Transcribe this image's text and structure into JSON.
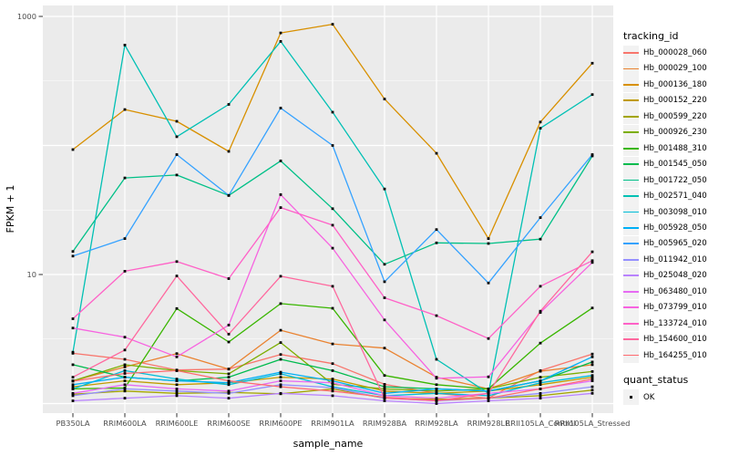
{
  "figure": {
    "panel_bg": "#EBEBEB",
    "gridline_color": "#FFFFFF",
    "point_color": "#000000",
    "tick_color": "#333333",
    "axis_text_color": "#4D4D4D"
  },
  "legend": {
    "tracking_title": "tracking_id",
    "quant_title": "quant_status",
    "quant_items": [
      "OK"
    ]
  },
  "chart_data": {
    "type": "line",
    "title": "",
    "xlabel": "sample_name",
    "ylabel": "FPKM + 1",
    "y_scale": "log10",
    "ylim": [
      1,
      1000
    ],
    "y_ticks": [
      {
        "label": "1000",
        "value": 1000
      },
      {
        "label": "10",
        "value": 10
      }
    ],
    "grid": "on",
    "legend_position": "right",
    "categories": [
      "PB350LA",
      "RRIM600LA",
      "RRIM600LE",
      "RRIM600SE",
      "RRIM600PE",
      "RRIM901LA",
      "RRIM928BA",
      "RRIM928LA",
      "RRIM928LE",
      "RRII105LA_Control",
      "RRII105LA_Stressed"
    ],
    "series": [
      {
        "name": "Hb_000028_060",
        "color": "#F8766D",
        "values": [
          2.45,
          2.2,
          1.82,
          1.85,
          2.4,
          2.04,
          1.41,
          1.2,
          1.1,
          1.8,
          2.42
        ]
      },
      {
        "name": "Hb_000029_100",
        "color": "#EA8331",
        "values": [
          1.5,
          1.92,
          2.44,
          1.85,
          3.7,
          2.9,
          2.69,
          1.6,
          1.3,
          1.78,
          2.0
        ]
      },
      {
        "name": "Hb_000136_180",
        "color": "#D89000",
        "values": [
          93,
          190,
          154,
          90,
          745,
          870,
          229,
          87,
          19,
          152,
          434
        ]
      },
      {
        "name": "Hb_000152_220",
        "color": "#C09B00",
        "values": [
          1.35,
          1.5,
          1.4,
          1.45,
          1.6,
          1.55,
          1.25,
          1.2,
          1.25,
          1.4,
          1.6
        ]
      },
      {
        "name": "Hb_000599_220",
        "color": "#A3A500",
        "values": [
          1.18,
          1.25,
          1.2,
          1.22,
          1.19,
          1.3,
          1.1,
          1.08,
          1.1,
          1.15,
          1.27
        ]
      },
      {
        "name": "Hb_000926_230",
        "color": "#7CAE00",
        "values": [
          1.5,
          2.0,
          1.8,
          1.7,
          2.97,
          1.41,
          1.3,
          1.25,
          1.3,
          1.6,
          1.77
        ]
      },
      {
        "name": "Hb_001488_310",
        "color": "#39B600",
        "values": [
          1.3,
          1.32,
          5.45,
          3.0,
          5.95,
          5.48,
          1.65,
          1.4,
          1.3,
          2.94,
          5.5
        ]
      },
      {
        "name": "Hb_001545_050",
        "color": "#00BB4E",
        "values": [
          2.0,
          1.6,
          1.5,
          1.6,
          2.2,
          1.8,
          1.35,
          1.3,
          1.25,
          1.5,
          2.1
        ]
      },
      {
        "name": "Hb_001722_050",
        "color": "#00C087",
        "values": [
          15.1,
          56,
          59,
          41,
          76,
          32.4,
          12,
          17.6,
          17.4,
          18.8,
          83
        ]
      },
      {
        "name": "Hb_002571_040",
        "color": "#00C0B4",
        "values": [
          2.5,
          600,
          117,
          208,
          640,
          181,
          46,
          2.2,
          1.2,
          136,
          248
        ]
      },
      {
        "name": "Hb_003098_010",
        "color": "#00BCD8",
        "values": [
          1.3,
          1.8,
          1.55,
          1.4,
          1.7,
          1.35,
          1.15,
          1.2,
          1.15,
          1.45,
          1.65
        ]
      },
      {
        "name": "Hb_005928_050",
        "color": "#00B0F6",
        "values": [
          1.4,
          1.6,
          1.5,
          1.45,
          1.75,
          1.5,
          1.2,
          1.3,
          1.25,
          1.5,
          2.3
        ]
      },
      {
        "name": "Hb_005965_020",
        "color": "#35A2FF",
        "values": [
          13.9,
          19,
          85,
          41,
          195,
          100,
          8.8,
          22.3,
          8.6,
          27.6,
          85
        ]
      },
      {
        "name": "Hb_011942_010",
        "color": "#9590FF",
        "values": [
          1.15,
          1.3,
          1.25,
          1.2,
          1.4,
          1.33,
          1.1,
          1.05,
          1.1,
          1.2,
          1.35
        ]
      },
      {
        "name": "Hb_025048_020",
        "color": "#B983FF",
        "values": [
          1.05,
          1.1,
          1.15,
          1.1,
          1.2,
          1.15,
          1.05,
          1.0,
          1.05,
          1.1,
          1.2
        ]
      },
      {
        "name": "Hb_063480_010",
        "color": "#E76BF3",
        "values": [
          1.2,
          1.4,
          1.3,
          1.25,
          1.5,
          1.45,
          1.15,
          1.1,
          1.2,
          1.3,
          1.5
        ]
      },
      {
        "name": "Hb_073799_010",
        "color": "#F763E0",
        "values": [
          3.85,
          3.27,
          2.3,
          4.06,
          41.6,
          16,
          4.45,
          1.57,
          1.61,
          5.08,
          12.4
        ]
      },
      {
        "name": "Hb_133724_010",
        "color": "#FF61C7",
        "values": [
          4.54,
          10.6,
          12.6,
          9.3,
          33,
          24.1,
          6.6,
          4.8,
          3.19,
          8.1,
          12.8
        ]
      },
      {
        "name": "Hb_154600_010",
        "color": "#FF689E",
        "values": [
          1.6,
          2.6,
          9.75,
          3.45,
          9.7,
          8.1,
          1.1,
          1.05,
          1.2,
          5.2,
          15
        ]
      },
      {
        "name": "Hb_164255_010",
        "color": "#FF6B70",
        "values": [
          1.49,
          1.71,
          1.8,
          1.5,
          1.35,
          1.25,
          1.12,
          1.06,
          1.1,
          1.3,
          1.55
        ]
      }
    ]
  }
}
